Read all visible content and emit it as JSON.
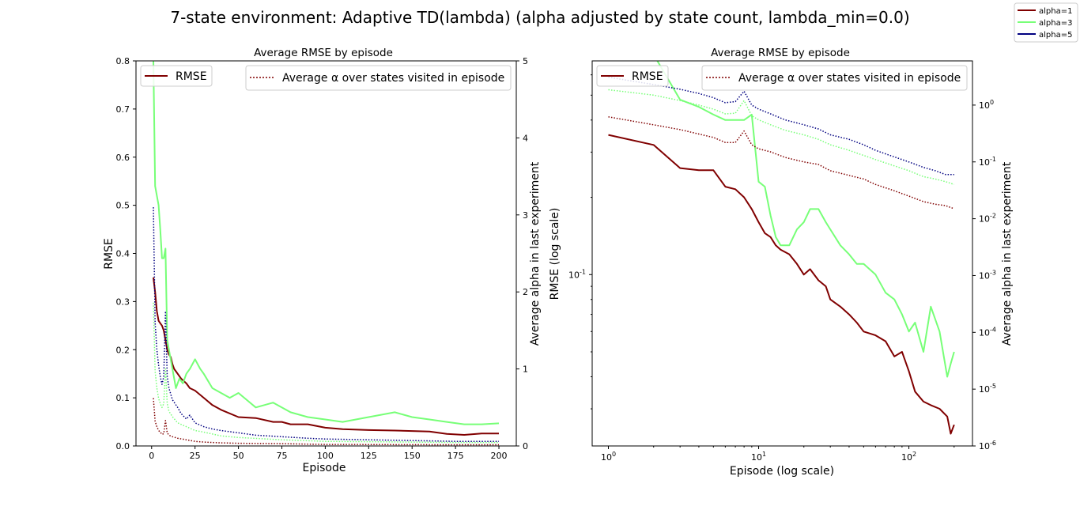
{
  "figure": {
    "suptitle": "7-state environment: Adaptive TD(lambda) (alpha adjusted by state count, lambda_min=0.0)",
    "legend": [
      "alpha=1",
      "alpha=3",
      "alpha=5"
    ],
    "colors": {
      "alpha=1": "#800000",
      "alpha=3": "#77ff77",
      "alpha=5": "#000080"
    }
  },
  "chart_data": [
    {
      "type": "line",
      "title": "Average RMSE by episode",
      "xlabel": "Episode",
      "ylabel": "RMSE",
      "y2label": "Average alpha in last experiment",
      "xlim": [
        -9,
        210
      ],
      "ylim": [
        0,
        0.8
      ],
      "y2lim": [
        0,
        5
      ],
      "xticks": [
        0,
        25,
        50,
        75,
        100,
        125,
        150,
        175,
        200
      ],
      "yticks": [
        0.0,
        0.1,
        0.2,
        0.3,
        0.4,
        0.5,
        0.6,
        0.7,
        0.8
      ],
      "y2ticks": [
        0,
        1,
        2,
        3,
        4,
        5
      ],
      "legend_left": {
        "label": "RMSE",
        "style": "solid",
        "loc": "upper left"
      },
      "legend_right": {
        "label": "Average α over states visited in episode",
        "style": "dotted",
        "loc": "upper right"
      },
      "series": [
        {
          "name": "alpha=1",
          "color": "#800000",
          "axis": "left",
          "style": "solid",
          "x": [
            1,
            2,
            3,
            4,
            5,
            6,
            7,
            8,
            9,
            10,
            11,
            12,
            13,
            14,
            15,
            17,
            20,
            22,
            25,
            30,
            35,
            40,
            50,
            60,
            70,
            75,
            80,
            90,
            100,
            110,
            125,
            140,
            150,
            160,
            170,
            180,
            190,
            200
          ],
          "y": [
            0.35,
            0.32,
            0.28,
            0.26,
            0.255,
            0.25,
            0.24,
            0.22,
            0.2,
            0.19,
            0.185,
            0.17,
            0.16,
            0.155,
            0.15,
            0.14,
            0.13,
            0.12,
            0.115,
            0.1,
            0.085,
            0.075,
            0.06,
            0.058,
            0.05,
            0.05,
            0.045,
            0.045,
            0.038,
            0.035,
            0.033,
            0.032,
            0.031,
            0.03,
            0.025,
            0.023,
            0.026,
            0.026
          ]
        },
        {
          "name": "alpha=3",
          "color": "#77ff77",
          "axis": "left",
          "style": "solid",
          "x": [
            1,
            2,
            3,
            4,
            5,
            6,
            7,
            8,
            9,
            10,
            12,
            14,
            16,
            18,
            20,
            22,
            25,
            28,
            30,
            35,
            40,
            45,
            50,
            60,
            70,
            80,
            90,
            100,
            110,
            125,
            140,
            150,
            160,
            170,
            180,
            190,
            200
          ],
          "y": [
            0.8,
            0.54,
            0.52,
            0.5,
            0.45,
            0.39,
            0.39,
            0.41,
            0.22,
            0.2,
            0.16,
            0.12,
            0.14,
            0.13,
            0.15,
            0.16,
            0.18,
            0.16,
            0.15,
            0.12,
            0.11,
            0.1,
            0.11,
            0.08,
            0.09,
            0.07,
            0.06,
            0.055,
            0.05,
            0.06,
            0.07,
            0.06,
            0.055,
            0.05,
            0.045,
            0.045,
            0.047
          ]
        },
        {
          "name": "alpha=1 avg α",
          "color": "#800000",
          "axis": "right",
          "style": "dotted",
          "x": [
            1,
            2,
            3,
            4,
            5,
            6,
            7,
            8,
            9,
            10,
            12,
            15,
            20,
            25,
            30,
            40,
            50,
            75,
            100,
            125,
            150,
            175,
            200
          ],
          "y": [
            0.62,
            0.32,
            0.25,
            0.2,
            0.18,
            0.15,
            0.16,
            0.33,
            0.17,
            0.14,
            0.12,
            0.1,
            0.08,
            0.06,
            0.05,
            0.04,
            0.035,
            0.03,
            0.02,
            0.018,
            0.016,
            0.015,
            0.015
          ]
        },
        {
          "name": "alpha=3 avg α",
          "color": "#77ff77",
          "axis": "right",
          "style": "dotted",
          "x": [
            1,
            2,
            3,
            4,
            5,
            6,
            7,
            8,
            9,
            10,
            12,
            15,
            20,
            25,
            30,
            40,
            50,
            75,
            100,
            125,
            150,
            175,
            200
          ],
          "y": [
            1.86,
            0.97,
            0.75,
            0.62,
            0.55,
            0.5,
            0.55,
            1.0,
            0.55,
            0.45,
            0.38,
            0.3,
            0.25,
            0.2,
            0.18,
            0.13,
            0.11,
            0.08,
            0.06,
            0.055,
            0.05,
            0.045,
            0.045
          ]
        },
        {
          "name": "alpha=5 avg α",
          "color": "#000080",
          "axis": "right",
          "style": "dotted",
          "x": [
            1,
            2,
            3,
            4,
            5,
            6,
            7,
            8,
            9,
            10,
            12,
            15,
            17,
            20,
            22,
            25,
            30,
            35,
            40,
            50,
            60,
            75,
            90,
            100,
            125,
            150,
            175,
            200
          ],
          "y": [
            3.1,
            1.6,
            1.25,
            1.05,
            0.9,
            0.8,
            0.9,
            1.75,
            0.9,
            0.75,
            0.6,
            0.5,
            0.42,
            0.35,
            0.4,
            0.3,
            0.25,
            0.22,
            0.2,
            0.17,
            0.14,
            0.12,
            0.1,
            0.09,
            0.08,
            0.07,
            0.06,
            0.06
          ]
        }
      ]
    },
    {
      "type": "line",
      "title": "Average RMSE by episode",
      "xlabel": "Episode (log scale)",
      "ylabel": "RMSE (log scale)",
      "y2label": "Average alpha in last experiment",
      "xscale": "log",
      "yscale": "log",
      "y2scale": "log",
      "xlim": [
        0.78,
        265
      ],
      "ylim": [
        0.0215,
        0.68
      ],
      "y2lim": [
        1e-06,
        6
      ],
      "xticks_labels": [
        "10^0",
        "10^1",
        "10^2"
      ],
      "yticks_labels": [
        "10^-1"
      ],
      "y2ticks_labels": [
        "10^0",
        "10^-1",
        "10^-2",
        "10^-3",
        "10^-4",
        "10^-5",
        "10^-6"
      ],
      "legend_left": {
        "label": "RMSE",
        "style": "solid",
        "loc": "upper left"
      },
      "legend_right": {
        "label": "Average α over states visited in episode",
        "style": "dotted",
        "loc": "upper right"
      },
      "series": [
        {
          "name": "alpha=1",
          "color": "#800000",
          "axis": "left",
          "style": "solid",
          "x": [
            1,
            2,
            3,
            4,
            5,
            6,
            7,
            8,
            9,
            10,
            11,
            12,
            13,
            14,
            16,
            18,
            20,
            22,
            25,
            28,
            30,
            35,
            40,
            45,
            50,
            60,
            70,
            80,
            90,
            100,
            110,
            125,
            140,
            160,
            180,
            190,
            200
          ],
          "y": [
            0.35,
            0.32,
            0.26,
            0.255,
            0.255,
            0.22,
            0.215,
            0.2,
            0.18,
            0.16,
            0.145,
            0.14,
            0.13,
            0.125,
            0.12,
            0.11,
            0.1,
            0.105,
            0.095,
            0.09,
            0.08,
            0.075,
            0.07,
            0.065,
            0.06,
            0.058,
            0.055,
            0.048,
            0.05,
            0.042,
            0.035,
            0.032,
            0.031,
            0.03,
            0.028,
            0.024,
            0.026
          ]
        },
        {
          "name": "alpha=3",
          "color": "#77ff77",
          "axis": "left",
          "style": "solid",
          "x": [
            1,
            2,
            3,
            4,
            5,
            6,
            7,
            8,
            9,
            10,
            11,
            12,
            13,
            14,
            16,
            18,
            20,
            22,
            25,
            28,
            30,
            35,
            40,
            45,
            50,
            60,
            70,
            80,
            90,
            100,
            110,
            125,
            140,
            160,
            180,
            190,
            200
          ],
          "y": [
            0.7,
            0.72,
            0.48,
            0.45,
            0.42,
            0.4,
            0.4,
            0.4,
            0.42,
            0.23,
            0.22,
            0.17,
            0.14,
            0.13,
            0.13,
            0.15,
            0.16,
            0.18,
            0.18,
            0.16,
            0.15,
            0.13,
            0.12,
            0.11,
            0.11,
            0.1,
            0.085,
            0.08,
            0.07,
            0.06,
            0.065,
            0.05,
            0.075,
            0.06,
            0.04,
            0.045,
            0.05
          ]
        },
        {
          "name": "alpha=1 avg α",
          "color": "#800000",
          "axis": "right",
          "style": "dotted",
          "x": [
            1,
            2,
            3,
            4,
            5,
            6,
            7,
            8,
            9,
            10,
            12,
            15,
            20,
            25,
            30,
            40,
            50,
            60,
            75,
            100,
            125,
            150,
            175,
            200
          ],
          "y": [
            0.62,
            0.45,
            0.37,
            0.31,
            0.27,
            0.22,
            0.22,
            0.35,
            0.2,
            0.17,
            0.15,
            0.12,
            0.1,
            0.09,
            0.07,
            0.058,
            0.05,
            0.04,
            0.033,
            0.025,
            0.02,
            0.018,
            0.017,
            0.015
          ]
        },
        {
          "name": "alpha=3 avg α",
          "color": "#77ff77",
          "axis": "right",
          "style": "dotted",
          "x": [
            1,
            2,
            3,
            4,
            5,
            6,
            7,
            8,
            9,
            10,
            12,
            15,
            20,
            25,
            30,
            40,
            50,
            60,
            75,
            100,
            125,
            150,
            175,
            200
          ],
          "y": [
            1.86,
            1.5,
            1.2,
            1.0,
            0.85,
            0.7,
            0.72,
            1.2,
            0.65,
            0.55,
            0.45,
            0.36,
            0.3,
            0.25,
            0.2,
            0.16,
            0.13,
            0.11,
            0.09,
            0.07,
            0.055,
            0.05,
            0.045,
            0.04
          ]
        },
        {
          "name": "alpha=5 avg α",
          "color": "#000080",
          "axis": "right",
          "style": "dotted",
          "x": [
            1,
            2,
            3,
            4,
            5,
            6,
            7,
            8,
            9,
            10,
            12,
            15,
            20,
            25,
            30,
            40,
            50,
            60,
            75,
            100,
            125,
            150,
            175,
            200
          ],
          "y": [
            3.1,
            2.3,
            1.9,
            1.6,
            1.35,
            1.1,
            1.15,
            1.75,
            1.0,
            0.85,
            0.7,
            0.55,
            0.45,
            0.38,
            0.3,
            0.25,
            0.2,
            0.16,
            0.13,
            0.1,
            0.08,
            0.07,
            0.06,
            0.06
          ]
        }
      ]
    }
  ]
}
